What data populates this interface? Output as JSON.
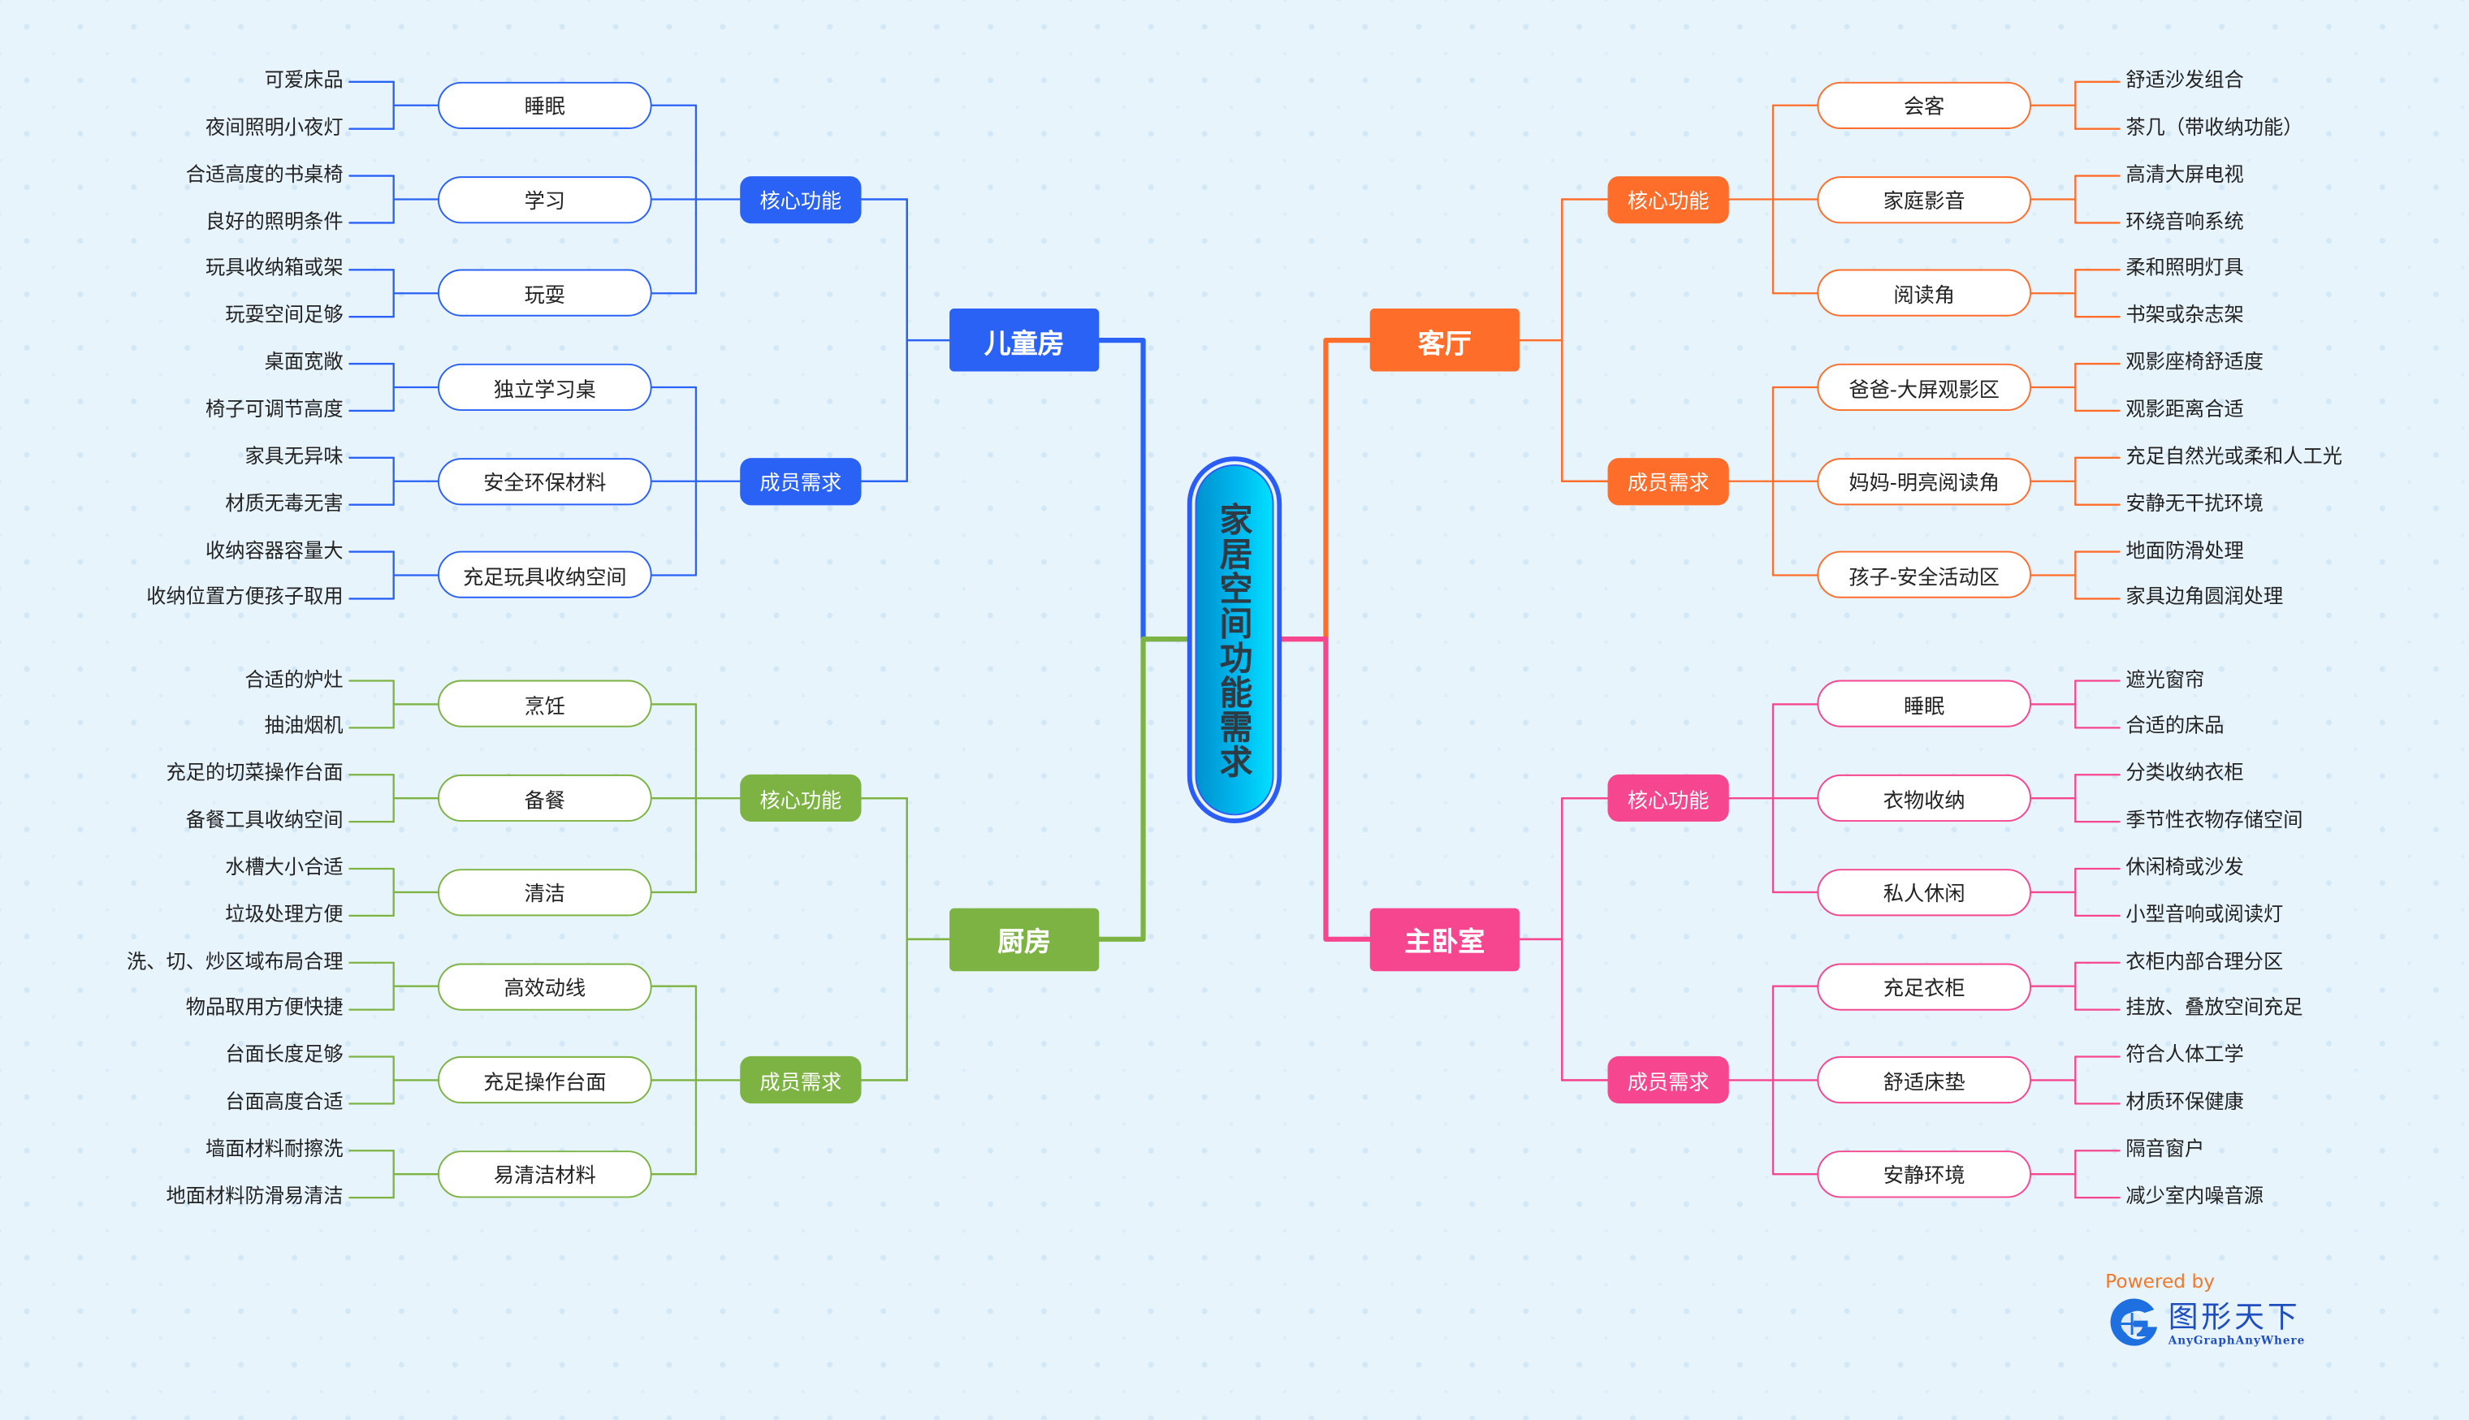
{
  "title": "家居空间功能需求",
  "colors": {
    "center_border": "#2b5cf6",
    "center_fill": "#00b8ee"
  },
  "branches": [
    {
      "label": "儿童房",
      "color": "#2962f5",
      "groups": [
        {
          "label": "核心功能",
          "items": [
            {
              "label": "睡眠",
              "leaves": [
                "可爱床品",
                "夜间照明小夜灯"
              ]
            },
            {
              "label": "学习",
              "leaves": [
                "合适高度的书桌椅",
                "良好的照明条件"
              ]
            },
            {
              "label": "玩耍",
              "leaves": [
                "玩具收纳箱或架",
                "玩耍空间足够"
              ]
            }
          ]
        },
        {
          "label": "成员需求",
          "items": [
            {
              "label": "独立学习桌",
              "leaves": [
                "桌面宽敞",
                "椅子可调节高度"
              ]
            },
            {
              "label": "安全环保材料",
              "leaves": [
                "家具无异味",
                "材质无毒无害"
              ]
            },
            {
              "label": "充足玩具收纳空间",
              "leaves": [
                "收纳容器容量大",
                "收纳位置方便孩子取用"
              ]
            }
          ]
        }
      ]
    },
    {
      "label": "客厅",
      "color": "#ff6d2a",
      "groups": [
        {
          "label": "核心功能",
          "items": [
            {
              "label": "会客",
              "leaves": [
                "舒适沙发组合",
                "茶几（带收纳功能）"
              ]
            },
            {
              "label": "家庭影音",
              "leaves": [
                "高清大屏电视",
                "环绕音响系统"
              ]
            },
            {
              "label": "阅读角",
              "leaves": [
                "柔和照明灯具",
                "书架或杂志架"
              ]
            }
          ]
        },
        {
          "label": "成员需求",
          "items": [
            {
              "label": "爸爸-大屏观影区",
              "leaves": [
                "观影座椅舒适度",
                "观影距离合适"
              ]
            },
            {
              "label": "妈妈-明亮阅读角",
              "leaves": [
                "充足自然光或柔和人工光",
                "安静无干扰环境"
              ]
            },
            {
              "label": "孩子-安全活动区",
              "leaves": [
                "地面防滑处理",
                "家具边角圆润处理"
              ]
            }
          ]
        }
      ]
    },
    {
      "label": "厨房",
      "color": "#7cb342",
      "groups": [
        {
          "label": "核心功能",
          "items": [
            {
              "label": "烹饪",
              "leaves": [
                "合适的炉灶",
                "抽油烟机"
              ]
            },
            {
              "label": "备餐",
              "leaves": [
                "充足的切菜操作台面",
                "备餐工具收纳空间"
              ]
            },
            {
              "label": "清洁",
              "leaves": [
                "水槽大小合适",
                "垃圾处理方便"
              ]
            }
          ]
        },
        {
          "label": "成员需求",
          "items": [
            {
              "label": "高效动线",
              "leaves": [
                "洗、切、炒区域布局合理",
                "物品取用方便快捷"
              ]
            },
            {
              "label": "充足操作台面",
              "leaves": [
                "台面长度足够",
                "台面高度合适"
              ]
            },
            {
              "label": "易清洁材料",
              "leaves": [
                "墙面材料耐擦洗",
                "地面材料防滑易清洁"
              ]
            }
          ]
        }
      ]
    },
    {
      "label": "主卧室",
      "color": "#f5468f",
      "groups": [
        {
          "label": "核心功能",
          "items": [
            {
              "label": "睡眠",
              "leaves": [
                "遮光窗帘",
                "合适的床品"
              ]
            },
            {
              "label": "衣物收纳",
              "leaves": [
                "分类收纳衣柜",
                "季节性衣物存储空间"
              ]
            },
            {
              "label": "私人休闲",
              "leaves": [
                "休闲椅或沙发",
                "小型音响或阅读灯"
              ]
            }
          ]
        },
        {
          "label": "成员需求",
          "items": [
            {
              "label": "充足衣柜",
              "leaves": [
                "衣柜内部合理分区",
                "挂放、叠放空间充足"
              ]
            },
            {
              "label": "舒适床垫",
              "leaves": [
                "符合人体工学",
                "材质环保健康"
              ]
            },
            {
              "label": "安静环境",
              "leaves": [
                "隔音窗户",
                "减少室内噪音源"
              ]
            }
          ]
        }
      ]
    }
  ],
  "footer": {
    "powered_by": "Powered by",
    "brand": "图形天下",
    "brand_sub": "AnyGraphAnyWhere",
    "logo_icon": "globe-g-logo"
  }
}
